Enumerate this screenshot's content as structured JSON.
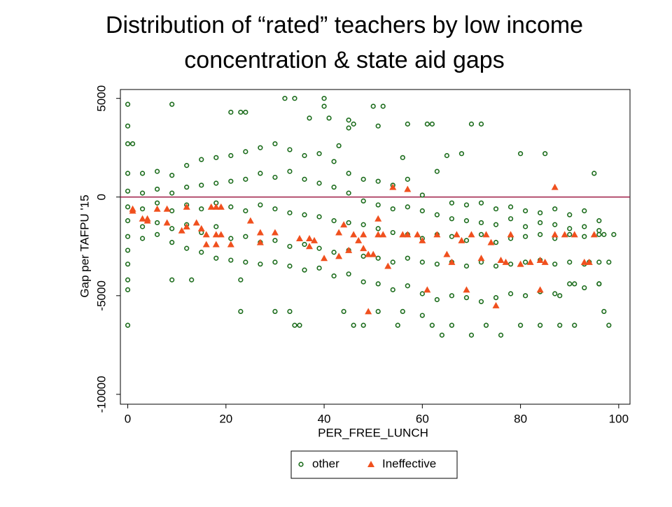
{
  "chart_data": {
    "type": "scatter",
    "title": [
      "Distribution of “rated” teachers by low income",
      "concentration & state aid gaps"
    ],
    "xlabel": "PER_FREE_LUNCH",
    "ylabel": "Gap per TAFPU '15",
    "xlim": [
      -1.5,
      102.3
    ],
    "ylim": [
      -10500,
      5450
    ],
    "xticks": [
      0,
      20,
      40,
      60,
      80,
      100
    ],
    "yticks": [
      -10000,
      -5000,
      0,
      5000
    ],
    "reference_line": {
      "value": 0,
      "color": "#a0204a"
    },
    "legend": "bottom",
    "series": [
      {
        "name": "other",
        "color": "#1a6b1a",
        "marker": "circle",
        "x": [
          0,
          0,
          0,
          0,
          0,
          3,
          3,
          3,
          3,
          3,
          6,
          6,
          6,
          6,
          6,
          9,
          9,
          9,
          9,
          9,
          12,
          12,
          12,
          12,
          12,
          15,
          15,
          15,
          15,
          15,
          18,
          18,
          18,
          18,
          18,
          21,
          21,
          21,
          21,
          21,
          24,
          24,
          24,
          24,
          24,
          27,
          27,
          27,
          27,
          27,
          30,
          30,
          30,
          30,
          30,
          33,
          33,
          33,
          33,
          33,
          36,
          36,
          36,
          36,
          36,
          39,
          39,
          39,
          39,
          39,
          42,
          42,
          42,
          42,
          42,
          45,
          45,
          45,
          45,
          45,
          48,
          48,
          48,
          48,
          48,
          51,
          51,
          51,
          51,
          51,
          54,
          54,
          54,
          54,
          54,
          57,
          57,
          57,
          57,
          57,
          60,
          60,
          60,
          60,
          60,
          63,
          63,
          63,
          63,
          63,
          66,
          66,
          66,
          66,
          66,
          69,
          69,
          69,
          69,
          69,
          72,
          72,
          72,
          72,
          72,
          75,
          75,
          75,
          75,
          75,
          78,
          78,
          78,
          78,
          78,
          81,
          81,
          81,
          81,
          81,
          84,
          84,
          84,
          84,
          84,
          87,
          87,
          87,
          87,
          87,
          90,
          90,
          90,
          90,
          90,
          93,
          93,
          93,
          93,
          93,
          96,
          96,
          96,
          96,
          96,
          0,
          0,
          0,
          1,
          9,
          21,
          23,
          24,
          32,
          34,
          40,
          40,
          37,
          41,
          45,
          46,
          45,
          50,
          52,
          51,
          43,
          56,
          57,
          61,
          62,
          65,
          68,
          70,
          72,
          80,
          85,
          95,
          0,
          0,
          0,
          0,
          0,
          9,
          13,
          23,
          23,
          30,
          33,
          34,
          35,
          44,
          46,
          48,
          51,
          55,
          56,
          60,
          62,
          64,
          66,
          70,
          73,
          76,
          80,
          84,
          88,
          91,
          97,
          98,
          96,
          91,
          88,
          94,
          98,
          99,
          97
        ],
        "values": [
          1200,
          300,
          -500,
          -1200,
          -2000,
          1200,
          200,
          -600,
          -1500,
          -2100,
          1300,
          400,
          -300,
          -1300,
          -1900,
          1100,
          200,
          -700,
          -1600,
          -2300,
          1600,
          500,
          -400,
          -1400,
          -2600,
          1900,
          600,
          -600,
          -1800,
          -2800,
          2000,
          700,
          -300,
          -1500,
          -3100,
          2100,
          800,
          -500,
          -2100,
          -3200,
          2300,
          900,
          -700,
          -2000,
          -3300,
          2500,
          1200,
          -400,
          -2300,
          -3400,
          2700,
          1000,
          -600,
          -2200,
          -3300,
          2400,
          1300,
          -800,
          -2500,
          -3500,
          2100,
          900,
          -900,
          -2400,
          -3700,
          2200,
          700,
          -1000,
          -2600,
          -3600,
          1800,
          500,
          -1200,
          -2800,
          -4000,
          1200,
          200,
          -1300,
          -2700,
          -3900,
          900,
          -200,
          -1400,
          -3000,
          -4300,
          800,
          -400,
          -1600,
          -3100,
          -4400,
          600,
          -600,
          -1800,
          -3300,
          -4700,
          900,
          -500,
          -1900,
          -3100,
          -4500,
          100,
          -700,
          -2100,
          -3300,
          -4900,
          1300,
          -900,
          -1900,
          -3400,
          -5200,
          -300,
          -1100,
          -2000,
          -3300,
          -5000,
          -400,
          -1200,
          -2200,
          -3500,
          -5100,
          -300,
          -1300,
          -1900,
          -3300,
          -5300,
          -600,
          -1400,
          -2300,
          -3500,
          -5100,
          -500,
          -1100,
          -2100,
          -3400,
          -4900,
          -700,
          -1500,
          -2000,
          -3300,
          -5000,
          -800,
          -1300,
          -1900,
          -3200,
          -4800,
          -600,
          -1400,
          -2100,
          -3400,
          -4900,
          -900,
          -1600,
          -1900,
          -3300,
          -4400,
          -700,
          -1500,
          -2000,
          -3400,
          -4600,
          -1200,
          -1700,
          -1900,
          -3300,
          -4400,
          4700,
          3600,
          2700,
          2700,
          4700,
          4300,
          4300,
          4300,
          5000,
          5000,
          5000,
          4600,
          4000,
          4000,
          3900,
          3700,
          3500,
          4600,
          4600,
          3600,
          2600,
          2000,
          3700,
          3700,
          3700,
          2100,
          2200,
          3700,
          3700,
          2200,
          2200,
          1200,
          -6500,
          -4700,
          -4200,
          -3400,
          -2700,
          -4200,
          -4200,
          -4200,
          -5800,
          -5800,
          -5800,
          -6500,
          -6500,
          -5800,
          -6500,
          -6500,
          -5800,
          -6500,
          -5800,
          -6000,
          -6500,
          -7000,
          -6500,
          -7000,
          -6500,
          -7000,
          -6500,
          -6500,
          -6500,
          -6500,
          -5800,
          -6500,
          -4400,
          -4400,
          -5000,
          -3300,
          -3300,
          -1900,
          -1900
        ]
      },
      {
        "name": "Ineffective",
        "color": "#f0501e",
        "marker": "triangle",
        "x": [
          1,
          1,
          3,
          4,
          4,
          6,
          8,
          8,
          11,
          12,
          12,
          14,
          15,
          16,
          16,
          17,
          18,
          18,
          18,
          19,
          19,
          21,
          25,
          27,
          27,
          30,
          35,
          37,
          37,
          38,
          40,
          43,
          43,
          44,
          45,
          46,
          47,
          48,
          48,
          49,
          49,
          50,
          51,
          51,
          52,
          53,
          54,
          56,
          57,
          57,
          59,
          60,
          61,
          63,
          65,
          66,
          67,
          68,
          69,
          70,
          72,
          73,
          74,
          75,
          76,
          77,
          78,
          80,
          82,
          84,
          84,
          85,
          87,
          87,
          89,
          91,
          93,
          94,
          95
        ],
        "values": [
          -600,
          -700,
          -1100,
          -1100,
          -1200,
          -600,
          -600,
          -1300,
          -1700,
          -500,
          -1500,
          -1300,
          -1600,
          -1900,
          -2400,
          -500,
          -500,
          -1900,
          -2400,
          -500,
          -1900,
          -2400,
          -1200,
          -1800,
          -2300,
          -1800,
          -2100,
          -2100,
          -2500,
          -2200,
          -3100,
          -1800,
          -3000,
          -1400,
          -2700,
          -1900,
          -2200,
          -1900,
          -2600,
          -2900,
          -5800,
          -2900,
          -1100,
          -1900,
          -1900,
          -3500,
          500,
          -1900,
          400,
          -1900,
          -1900,
          -2200,
          -4700,
          -1900,
          -2900,
          -3300,
          -1900,
          -2200,
          -4700,
          -1900,
          -3100,
          -1900,
          -2300,
          -5500,
          -3200,
          -3300,
          -1900,
          -3400,
          -3300,
          -3200,
          -4700,
          -3300,
          500,
          -1900,
          -1900,
          -1900,
          -3300,
          -3300,
          -1900
        ]
      }
    ]
  }
}
